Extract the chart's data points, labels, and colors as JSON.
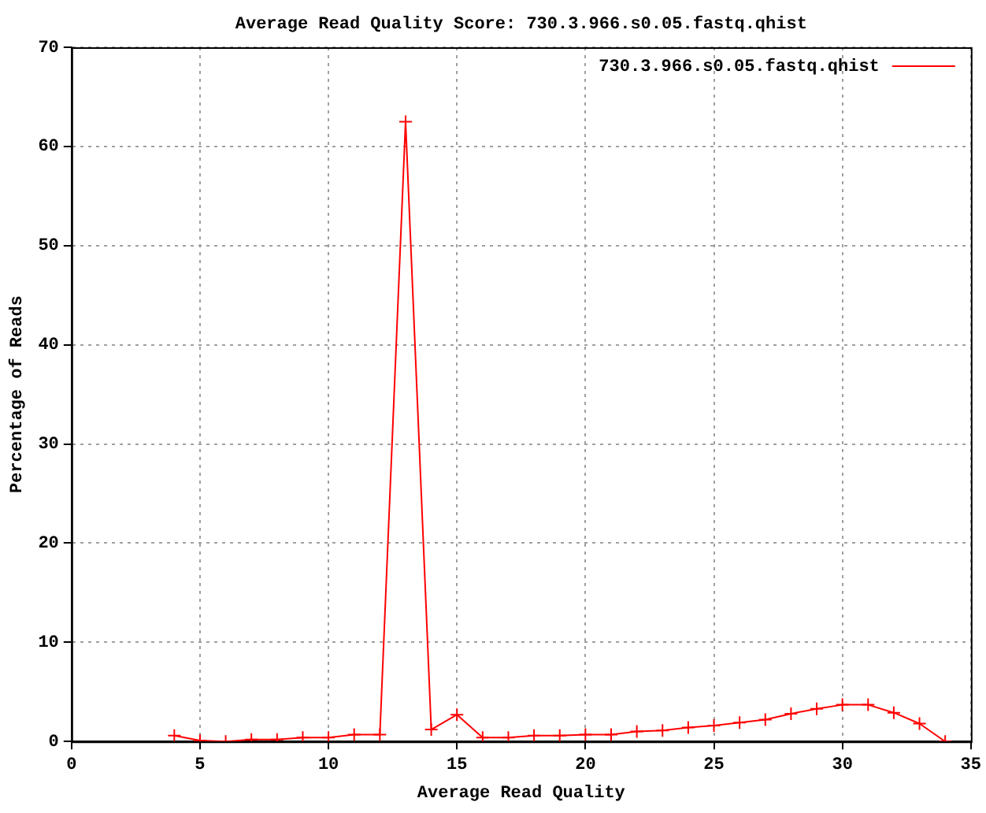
{
  "chart_data": {
    "type": "line",
    "title": "Average Read Quality Score: 730.3.966.s0.05.fastq.qhist",
    "xlabel": "Average Read Quality",
    "ylabel": "Percentage of Reads",
    "x": [
      4,
      5,
      6,
      7,
      8,
      9,
      10,
      11,
      12,
      13,
      14,
      15,
      16,
      17,
      18,
      19,
      20,
      21,
      22,
      23,
      24,
      25,
      26,
      27,
      28,
      29,
      30,
      31,
      32,
      33,
      34
    ],
    "series": [
      {
        "name": "730.3.966.s0.05.fastq.qhist",
        "color": "#ff0000",
        "values": [
          0.6,
          0.1,
          0,
          0.2,
          0.2,
          0.4,
          0.4,
          0.7,
          0.7,
          62.5,
          1.2,
          2.7,
          0.4,
          0.4,
          0.6,
          0.6,
          0.7,
          0.7,
          1.0,
          1.1,
          1.4,
          1.6,
          1.9,
          2.2,
          2.8,
          3.3,
          3.7,
          3.7,
          2.9,
          1.8,
          0
        ]
      }
    ],
    "xlim": [
      0,
      35
    ],
    "xticks": [
      0,
      5,
      10,
      15,
      20,
      25,
      30,
      35
    ],
    "ylim": [
      0,
      70
    ],
    "yticks": [
      0,
      10,
      20,
      30,
      40,
      50,
      60,
      70
    ],
    "grid": true,
    "legend": "top right",
    "marker": "cross",
    "line_style": "solid"
  }
}
